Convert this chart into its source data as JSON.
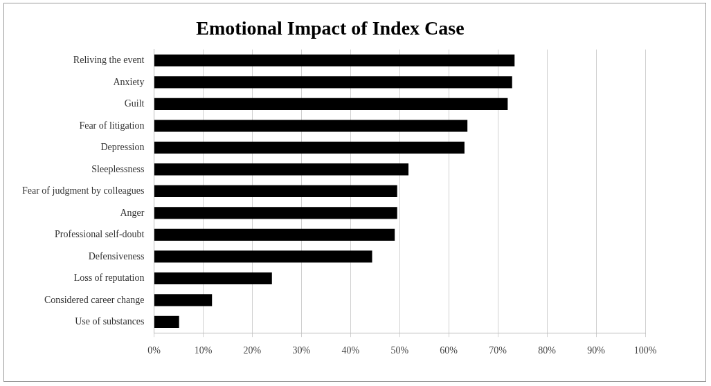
{
  "chart_data": {
    "type": "bar",
    "orientation": "horizontal",
    "title": "Emotional Impact of Index Case",
    "categories": [
      "Reliving the event",
      "Anxiety",
      "Guilt",
      "Fear of litigation",
      "Depression",
      "Sleeplessness",
      "Fear of judgment by colleagues",
      "Anger",
      "Professional self-doubt",
      "Defensiveness",
      "Loss of reputation",
      "Considered career change",
      "Use of substances"
    ],
    "values": [
      73.4,
      72.9,
      72,
      63.8,
      63.2,
      51.8,
      49.5,
      49.5,
      49,
      44.4,
      24,
      11.8,
      5.1
    ],
    "color": "#000000",
    "xlim": [
      0,
      100
    ],
    "xticks": [
      {
        "value": 0,
        "label": "0%"
      },
      {
        "value": 10,
        "label": "10%"
      },
      {
        "value": 20,
        "label": "20%"
      },
      {
        "value": 30,
        "label": "30%"
      },
      {
        "value": 40,
        "label": "40%"
      },
      {
        "value": 50,
        "label": "50%"
      },
      {
        "value": 60,
        "label": "60%"
      },
      {
        "value": 70,
        "label": "70%"
      },
      {
        "value": 80,
        "label": "80%"
      },
      {
        "value": 90,
        "label": "90%"
      },
      {
        "value": 100,
        "label": "100%"
      }
    ],
    "grid": "x",
    "legend": false
  }
}
